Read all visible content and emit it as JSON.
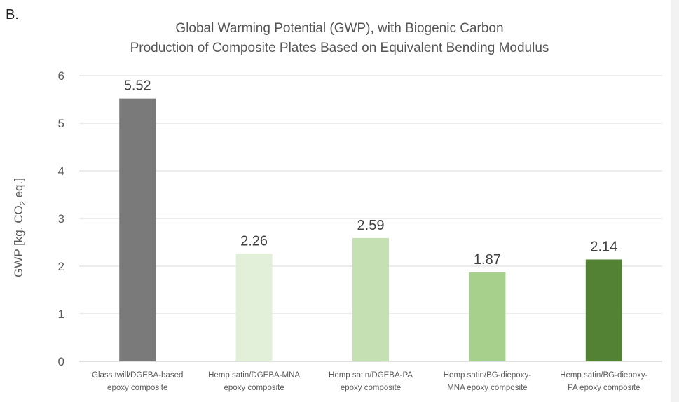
{
  "panel_label": "B.",
  "chart_data": {
    "type": "bar",
    "title": "Global Warming Potential (GWP), with Biogenic Carbon",
    "subtitle": "Production of Composite Plates Based on Equivalent Bending Modulus",
    "ylabel_prefix": "GWP [kg. CO",
    "ylabel_sub": "2",
    "ylabel_suffix": " eq.]",
    "xlabel": "",
    "ylim": [
      0,
      6
    ],
    "yticks": [
      "0",
      "1",
      "2",
      "3",
      "4",
      "5",
      "6"
    ],
    "grid": true,
    "categories": [
      [
        "Glass twill/DGEBA-based",
        "epoxy composite"
      ],
      [
        "Hemp satin/DGEBA-MNA",
        "epoxy composite"
      ],
      [
        "Hemp satin/DGEBA-PA",
        "epoxy composite"
      ],
      [
        "Hemp satin/BG-diepoxy-",
        "MNA epoxy composite"
      ],
      [
        "Hemp satin/BG-diepoxy-",
        "PA epoxy composite"
      ]
    ],
    "values": [
      5.52,
      2.26,
      2.59,
      1.87,
      2.14
    ],
    "data_labels": [
      "5.52",
      "2.26",
      "2.59",
      "1.87",
      "2.14"
    ],
    "colors": [
      "#7a7a7a",
      "#e2efd9",
      "#c5e0b3",
      "#a8d08d",
      "#548235"
    ]
  }
}
